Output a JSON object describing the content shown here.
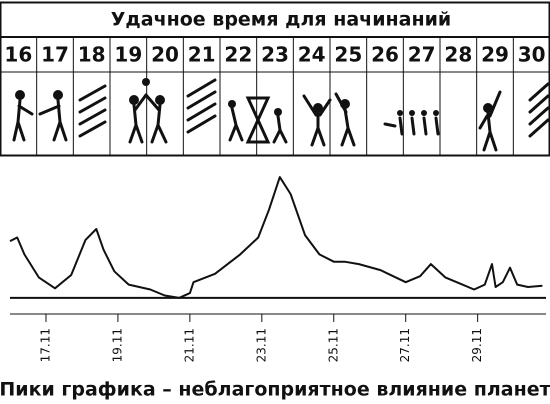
{
  "header": {
    "title": "Удачное время для начинаний"
  },
  "days": [
    16,
    17,
    18,
    19,
    20,
    21,
    22,
    23,
    24,
    25,
    26,
    27,
    28,
    29,
    30
  ],
  "chart_data": {
    "type": "line",
    "color": "#111111",
    "x": [
      16.0,
      16.2,
      16.4,
      16.8,
      17.25,
      17.7,
      18.1,
      18.4,
      18.6,
      18.9,
      19.3,
      19.9,
      20.3,
      20.7,
      21.0,
      21.1,
      21.7,
      22.4,
      22.9,
      23.2,
      23.5,
      23.8,
      24.2,
      24.6,
      25.0,
      25.3,
      25.7,
      26.3,
      27.0,
      27.4,
      27.7,
      28.1,
      28.5,
      28.9,
      29.2,
      29.4,
      29.5,
      29.7,
      29.9,
      30.1,
      30.4,
      30.8
    ],
    "values": [
      47,
      50,
      36,
      17,
      8,
      19,
      48,
      57,
      40,
      22,
      11,
      7,
      2,
      0,
      4,
      13,
      20,
      36,
      50,
      73,
      100,
      86,
      52,
      36,
      30,
      30,
      28,
      23,
      13,
      18,
      28,
      17,
      12,
      7,
      11,
      28,
      9,
      13,
      25,
      11,
      9,
      10
    ],
    "xlim": [
      16,
      30.9
    ],
    "xticks": [
      {
        "value": 17,
        "label": "17.11"
      },
      {
        "value": 19,
        "label": "19.11"
      },
      {
        "value": 21,
        "label": "21.11"
      },
      {
        "value": 23,
        "label": "23.11"
      },
      {
        "value": 25,
        "label": "25.11"
      },
      {
        "value": 27,
        "label": "27.11"
      },
      {
        "value": 29,
        "label": "29.11"
      }
    ],
    "ylim": [
      -10,
      110
    ]
  },
  "caption": "Пики графика – неблагоприятное влияние планет"
}
